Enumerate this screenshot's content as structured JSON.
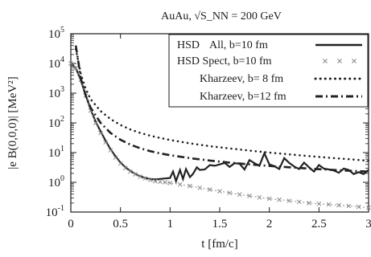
{
  "chart_data": {
    "type": "line",
    "title": "AuAu,  √S_NN = 200 GeV",
    "xlabel": "t [fm/c]",
    "ylabel": "|e B(0,0,0)|  [MeV²]",
    "xlim": [
      0,
      3
    ],
    "ylim": [
      0.1,
      100000
    ],
    "yscale": "log",
    "grid": false,
    "legend_position": "top-right",
    "x_ticks": [
      {
        "value": 0,
        "label": "0"
      },
      {
        "value": 0.5,
        "label": "0.5"
      },
      {
        "value": 1,
        "label": "1"
      },
      {
        "value": 1.5,
        "label": "1.5"
      },
      {
        "value": 2,
        "label": "2"
      },
      {
        "value": 2.5,
        "label": "2.5"
      },
      {
        "value": 3,
        "label": "3"
      }
    ],
    "y_ticks": [
      {
        "value": 0.1,
        "base": "10",
        "exp": "-1"
      },
      {
        "value": 1,
        "base": "10",
        "exp": "0"
      },
      {
        "value": 10,
        "base": "10",
        "exp": "1"
      },
      {
        "value": 100,
        "base": "10",
        "exp": "2"
      },
      {
        "value": 1000,
        "base": "10",
        "exp": "3"
      },
      {
        "value": 10000,
        "base": "10",
        "exp": "4"
      },
      {
        "value": 100000,
        "base": "10",
        "exp": "5"
      }
    ],
    "series": [
      {
        "name": "HSD  All, b=10 fm",
        "style": "solid",
        "color": "#222222",
        "x": [
          0.0,
          0.05,
          0.1,
          0.15,
          0.2,
          0.25,
          0.3,
          0.35,
          0.4,
          0.45,
          0.5,
          0.55,
          0.6,
          0.65,
          0.7,
          0.75,
          0.8,
          0.85,
          0.9,
          0.95,
          1.0,
          1.03,
          1.06,
          1.1,
          1.13,
          1.16,
          1.2,
          1.23,
          1.27,
          1.3,
          1.35,
          1.4,
          1.45,
          1.5,
          1.55,
          1.6,
          1.65,
          1.7,
          1.75,
          1.8,
          1.85,
          1.9,
          1.95,
          2.0,
          2.05,
          2.1,
          2.15,
          2.2,
          2.25,
          2.3,
          2.35,
          2.4,
          2.45,
          2.5,
          2.55,
          2.6,
          2.65,
          2.7,
          2.75,
          2.8,
          2.85,
          2.9,
          2.95,
          3.0
        ],
        "y": [
          10000,
          7000,
          2800,
          850,
          280,
          110,
          52,
          25,
          13,
          7.5,
          4.6,
          3.2,
          2.4,
          1.9,
          1.6,
          1.4,
          1.3,
          1.25,
          1.3,
          1.35,
          1.4,
          2.3,
          1.1,
          2.6,
          1.3,
          2.8,
          1.5,
          1.9,
          3.2,
          2.6,
          2.7,
          3.8,
          3.6,
          4.0,
          4.5,
          3.3,
          4.4,
          4.2,
          2.7,
          5.6,
          4.4,
          3.6,
          9.5,
          4.0,
          3.5,
          2.8,
          6.5,
          4.5,
          3.4,
          2.8,
          4.6,
          3.2,
          2.3,
          3.8,
          2.9,
          2.7,
          2.5,
          2.1,
          2.9,
          2.6,
          1.9,
          2.2,
          1.9,
          2.6
        ]
      },
      {
        "name": "HSD Spect, b=10 fm",
        "style": "dotted-crosses",
        "color": "#8a8a8a",
        "x": [
          0.0,
          0.05,
          0.1,
          0.15,
          0.2,
          0.25,
          0.3,
          0.35,
          0.4,
          0.45,
          0.5,
          0.55,
          0.6,
          0.65,
          0.7,
          0.75,
          0.8,
          0.85,
          0.9,
          0.95,
          1.0,
          1.1,
          1.2,
          1.3,
          1.4,
          1.5,
          1.6,
          1.7,
          1.8,
          1.9,
          2.0,
          2.1,
          2.2,
          2.3,
          2.4,
          2.5,
          2.6,
          2.7,
          2.8,
          2.9,
          3.0
        ],
        "y": [
          10000,
          7000,
          2800,
          820,
          260,
          100,
          46,
          22,
          12,
          6.8,
          4.3,
          3.0,
          2.3,
          1.85,
          1.55,
          1.35,
          1.2,
          1.1,
          1.05,
          1.0,
          0.95,
          0.85,
          0.75,
          0.65,
          0.57,
          0.5,
          0.44,
          0.39,
          0.35,
          0.31,
          0.28,
          0.26,
          0.24,
          0.22,
          0.2,
          0.19,
          0.18,
          0.17,
          0.16,
          0.15,
          0.14
        ]
      },
      {
        "name": "Kharzeev, b=  8 fm",
        "style": "dotted",
        "color": "#222222",
        "x": [
          0.05,
          0.08,
          0.1,
          0.15,
          0.2,
          0.3,
          0.4,
          0.5,
          0.6,
          0.7,
          0.8,
          0.9,
          1.0,
          1.2,
          1.4,
          1.6,
          1.8,
          2.0,
          2.2,
          2.4,
          2.6,
          2.8,
          3.0
        ],
        "y": [
          30000,
          10000,
          4500,
          1400,
          620,
          250,
          135,
          85,
          60,
          46,
          37,
          31,
          26.5,
          20.5,
          16.5,
          13.8,
          11.7,
          10,
          8.7,
          7.6,
          6.7,
          6.0,
          5.3
        ]
      },
      {
        "name": "Kharzeev, b=12 fm",
        "style": "dash-dot",
        "color": "#222222",
        "x": [
          0.05,
          0.08,
          0.1,
          0.15,
          0.2,
          0.3,
          0.4,
          0.5,
          0.6,
          0.7,
          0.8,
          0.9,
          1.0,
          1.2,
          1.4,
          1.6,
          1.8,
          2.0,
          2.2,
          2.4,
          2.6,
          2.8,
          3.0
        ],
        "y": [
          40000,
          9000,
          3200,
          830,
          320,
          100,
          46,
          27,
          18.5,
          14,
          11.2,
          9.4,
          8.2,
          6.5,
          5.4,
          4.6,
          4.0,
          3.55,
          3.2,
          2.9,
          2.65,
          2.45,
          2.3
        ]
      }
    ],
    "legend": [
      {
        "label_a": "HSD",
        "label_b": "All, b=10 fm",
        "series": 0
      },
      {
        "label_a": "HSD Spect, b=10 fm",
        "label_b": "",
        "series": 1
      },
      {
        "label_a": "Kharzeev, b=  8 fm",
        "label_b": "",
        "series": 2
      },
      {
        "label_a": "Kharzeev, b=12 fm",
        "label_b": "",
        "series": 3
      }
    ]
  }
}
